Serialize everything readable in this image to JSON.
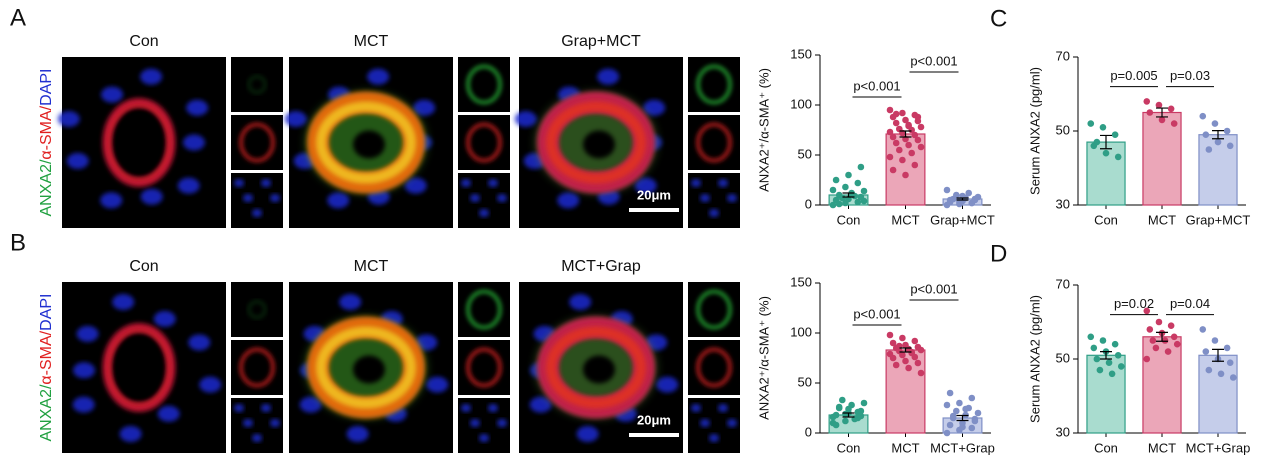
{
  "figure": {
    "panels": [
      {
        "letter": "A",
        "stain": [
          "ANXA2/",
          "α-SMA/",
          "DAPI"
        ],
        "images": [
          "Con",
          "MCT",
          "Grap+MCT"
        ],
        "scale_bar": "20μm"
      },
      {
        "letter": "B",
        "stain": [
          "ANXA2/",
          "α-SMA/",
          "DAPI"
        ],
        "images": [
          "Con",
          "MCT",
          "MCT+Grap"
        ],
        "scale_bar": "20μm"
      }
    ],
    "chart_letters": [
      "C",
      "D"
    ]
  },
  "chart_data": [
    {
      "type": "bar",
      "ylabel": "ANXA2⁺/α-SMA⁺ (%)",
      "categories": [
        "Con",
        "MCT",
        "Grap+MCT"
      ],
      "values": [
        10,
        71,
        6
      ],
      "errors": [
        2,
        3,
        1
      ],
      "points": [
        [
          0,
          2,
          3,
          5,
          6,
          8,
          10,
          12,
          4,
          7,
          9,
          15,
          18,
          22,
          25,
          30,
          38,
          1,
          11,
          14
        ],
        [
          95,
          92,
          90,
          88,
          85,
          84,
          82,
          80,
          78,
          76,
          75,
          73,
          72,
          70,
          68,
          66,
          65,
          62,
          60,
          58,
          55,
          52,
          48,
          45,
          40,
          35,
          30,
          88,
          91,
          79
        ],
        [
          0,
          1,
          2,
          3,
          4,
          5,
          6,
          7,
          8,
          10,
          12,
          15,
          3,
          2,
          5,
          9,
          6
        ]
      ],
      "colors": [
        "#2f9e86",
        "#c93a64",
        "#7f8fc6"
      ],
      "fill_colors": [
        "#a9dccf",
        "#eba6b8",
        "#c5cdea"
      ],
      "ylim": [
        0,
        150
      ],
      "yticks": [
        0,
        50,
        100,
        150
      ],
      "comparisons": [
        {
          "from": 0,
          "to": 1,
          "y": 108,
          "label": "p<0.001"
        },
        {
          "from": 1,
          "to": 2,
          "y": 133,
          "label": "p<0.001"
        }
      ]
    },
    {
      "type": "bar",
      "ylabel": "ANXA2⁺/α-SMA⁺ (%)",
      "categories": [
        "Con",
        "MCT",
        "MCT+Grap"
      ],
      "values": [
        18,
        83,
        15
      ],
      "errors": [
        2,
        2,
        2.5
      ],
      "points": [
        [
          10,
          12,
          15,
          18,
          20,
          22,
          25,
          28,
          30,
          33,
          14,
          16,
          19,
          21,
          8,
          24,
          17,
          26
        ],
        [
          98,
          95,
          92,
          90,
          88,
          86,
          85,
          84,
          83,
          82,
          80,
          79,
          78,
          76,
          75,
          72,
          70,
          68,
          65,
          60,
          87,
          81
        ],
        [
          0,
          3,
          5,
          8,
          10,
          12,
          15,
          18,
          20,
          22,
          25,
          28,
          30,
          35,
          40,
          6,
          14,
          17,
          24
        ]
      ],
      "colors": [
        "#2f9e86",
        "#c93a64",
        "#7f8fc6"
      ],
      "fill_colors": [
        "#a9dccf",
        "#eba6b8",
        "#c5cdea"
      ],
      "ylim": [
        0,
        150
      ],
      "yticks": [
        0,
        50,
        100,
        150
      ],
      "comparisons": [
        {
          "from": 0,
          "to": 1,
          "y": 108,
          "label": "p<0.001"
        },
        {
          "from": 1,
          "to": 2,
          "y": 133,
          "label": "p<0.001"
        }
      ]
    },
    {
      "type": "bar",
      "ylabel": "Serum ANXA2 (pg/ml)",
      "categories": [
        "Con",
        "MCT",
        "Grap+MCT"
      ],
      "values": [
        47,
        55,
        49
      ],
      "errors": [
        1.8,
        1.2,
        1.1
      ],
      "points": [
        [
          52,
          51,
          49,
          46,
          44,
          43,
          47
        ],
        [
          58,
          57,
          56,
          55,
          53,
          52
        ],
        [
          54,
          52,
          50,
          49,
          47,
          46,
          45
        ]
      ],
      "colors": [
        "#2f9e86",
        "#c93a64",
        "#7f8fc6"
      ],
      "fill_colors": [
        "#a9dccf",
        "#eba6b8",
        "#c5cdea"
      ],
      "ylim": [
        30,
        70
      ],
      "yticks": [
        30,
        50,
        70
      ],
      "comparisons": [
        {
          "from": 0,
          "to": 1,
          "y": 62,
          "label": "p=0.005"
        },
        {
          "from": 1,
          "to": 2,
          "y": 62,
          "label": "p=0.03"
        }
      ]
    },
    {
      "type": "bar",
      "ylabel": "Serum ANXA2 (pg/ml)",
      "categories": [
        "Con",
        "MCT",
        "MCT+Grap"
      ],
      "values": [
        51,
        56,
        51
      ],
      "errors": [
        1,
        1.2,
        1.6
      ],
      "points": [
        [
          56,
          55,
          54,
          53,
          52,
          51,
          50,
          49,
          48,
          47,
          46
        ],
        [
          63,
          60,
          59,
          58,
          57,
          56,
          55,
          55,
          54,
          53,
          52,
          50
        ],
        [
          58,
          55,
          53,
          52,
          50,
          49,
          47,
          46,
          45
        ]
      ],
      "colors": [
        "#2f9e86",
        "#c93a64",
        "#7f8fc6"
      ],
      "fill_colors": [
        "#a9dccf",
        "#eba6b8",
        "#c5cdea"
      ],
      "ylim": [
        30,
        70
      ],
      "yticks": [
        30,
        50,
        70
      ],
      "comparisons": [
        {
          "from": 0,
          "to": 1,
          "y": 62,
          "label": "p=0.02"
        },
        {
          "from": 1,
          "to": 2,
          "y": 62,
          "label": "p=0.04"
        }
      ]
    }
  ]
}
